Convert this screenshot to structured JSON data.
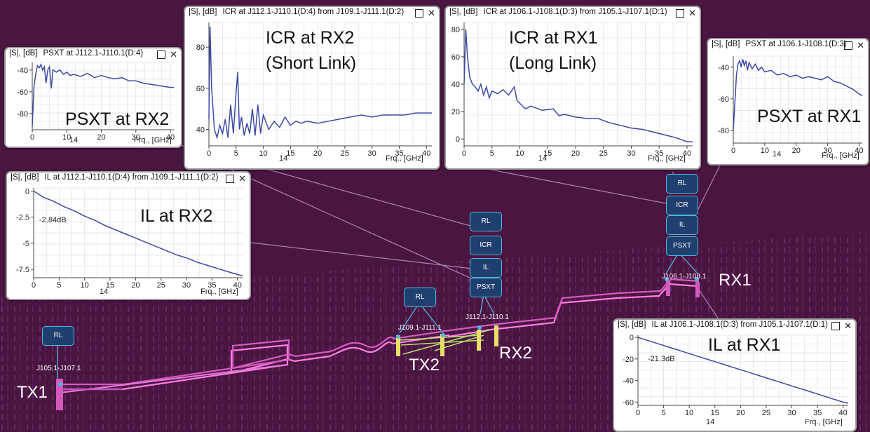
{
  "windows": {
    "psxt_rx2": {
      "ylabel": "|S|, [dB]",
      "title": "PSXT at J112.1-J110.1(D:4)",
      "annotation": "PSXT at RX2",
      "xlabel": "Frq., [GHz]",
      "xsub": "14"
    },
    "icr_rx2": {
      "ylabel": "|S|, [dB]",
      "title": "ICR at J112.1-J110.1(D:4) from J109.1-J111.1(D:2)",
      "annotation_line1": "ICR at RX2",
      "annotation_line2": "(Short Link)",
      "xlabel": "Frq., [GHz]",
      "xsub": "14"
    },
    "icr_rx1": {
      "ylabel": "|S|, [dB]",
      "title": "ICR at J106.1-J108.1(D:3) from J105.1-J107.1(D:1)",
      "annotation_line1": "ICR at RX1",
      "annotation_line2": "(Long Link)",
      "xlabel": "Frq., [GHz]",
      "xsub": "14"
    },
    "psxt_rx1": {
      "ylabel": "|S|, [dB]",
      "title": "PSXT at J106.1-J108.1(D:3)",
      "annotation": "PSXT at RX1",
      "xlabel": "Frq., [GHz]",
      "xsub": "14"
    },
    "il_rx2": {
      "ylabel": "|S|, [dB]",
      "title": "IL at J112.1-J110.1(D:4) from J109.1-J111.1(D:2)",
      "annotation": "IL at RX2",
      "marker": "-2.84dB",
      "xlabel": "Frq., [GHz]",
      "xsub": "14"
    },
    "il_rx1": {
      "ylabel": "|S|, [dB]",
      "title": "IL at J106.1-J108.1(D:3) from J105.1-J107.1(D:1)",
      "annotation": "IL at RX1",
      "marker": "-21.3dB",
      "xlabel": "Frq., [GHz]",
      "xsub": "14"
    }
  },
  "scene": {
    "labels": {
      "tx1": "TX1",
      "tx2": "TX2",
      "rx1": "RX1",
      "rx2": "RX2"
    },
    "ports": {
      "tx1": "J105.1-J107.1",
      "tx2": "J109.1-J111.1",
      "rx2": "J112.1-J110.1",
      "rx1": "J106.1-J108.1"
    },
    "nodes": {
      "rl": "RL",
      "icr": "ICR",
      "il": "IL",
      "psxt": "PSXT"
    }
  },
  "controls": {
    "maximize": "☐",
    "close": "✕"
  },
  "chart_data": [
    {
      "id": "psxt_rx2",
      "type": "line",
      "xlim": [
        0,
        41
      ],
      "ylim": [
        -95,
        -33
      ],
      "xticks": [
        0,
        10,
        20,
        30,
        40
      ],
      "yticks": [
        -40,
        -60,
        -80
      ],
      "grid": true,
      "series": [
        {
          "color": "#3b4aa8",
          "x": [
            0,
            0.5,
            1,
            1.5,
            2,
            2.5,
            3,
            3.5,
            4,
            4.5,
            5,
            5.5,
            6,
            7,
            8,
            9,
            10,
            11,
            12,
            14,
            16,
            18,
            20,
            22,
            24,
            26,
            28,
            30,
            32,
            34,
            36,
            38,
            40,
            41
          ],
          "y": [
            -92,
            -55,
            -44,
            -36,
            -38,
            -35,
            -40,
            -37,
            -52,
            -40,
            -37,
            -57,
            -40,
            -42,
            -40,
            -44,
            -42,
            -45,
            -44,
            -46,
            -43,
            -47,
            -45,
            -47,
            -48,
            -47,
            -50,
            -50,
            -52,
            -53,
            -54,
            -55,
            -56,
            -56
          ]
        }
      ]
    },
    {
      "id": "icr_rx2",
      "type": "line",
      "xlim": [
        0,
        41
      ],
      "ylim": [
        32,
        92
      ],
      "xticks": [
        0,
        5,
        10,
        15,
        20,
        25,
        30,
        35,
        40
      ],
      "yticks": [
        40,
        60,
        80
      ],
      "grid": true,
      "series": [
        {
          "color": "#3b4aa8",
          "x": [
            0,
            0.2,
            0.5,
            1,
            1.5,
            2,
            2.5,
            3,
            3.5,
            4,
            4.5,
            5,
            5.3,
            5.6,
            6,
            6.5,
            7,
            7.5,
            8,
            8.5,
            9,
            9.5,
            10,
            11,
            12,
            13,
            14,
            15,
            16,
            17,
            18,
            20,
            22,
            24,
            26,
            28,
            30,
            32,
            34,
            36,
            38,
            40,
            41
          ],
          "y": [
            45,
            90,
            60,
            40,
            36,
            42,
            38,
            45,
            36,
            52,
            38,
            58,
            68,
            40,
            46,
            37,
            43,
            38,
            50,
            37,
            52,
            38,
            47,
            40,
            44,
            41,
            46,
            42,
            44,
            43,
            44,
            43,
            44,
            45,
            46,
            47,
            46,
            47,
            47,
            47,
            48,
            48,
            48
          ]
        }
      ]
    },
    {
      "id": "icr_rx1",
      "type": "line",
      "xlim": [
        0,
        41
      ],
      "ylim": [
        -5,
        85
      ],
      "xticks": [
        0,
        5,
        10,
        15,
        20,
        25,
        30,
        35,
        40
      ],
      "yticks": [
        0,
        20,
        40,
        60,
        80
      ],
      "grid": true,
      "series": [
        {
          "color": "#3b4aa8",
          "x": [
            0,
            0.3,
            0.6,
            1,
            1.5,
            2,
            2.5,
            3,
            3.5,
            4,
            4.5,
            5,
            6,
            7,
            8,
            9,
            9.5,
            10,
            11,
            12,
            14,
            16,
            17,
            18,
            20,
            22,
            24,
            26,
            28,
            30,
            32,
            34,
            36,
            38,
            40,
            41
          ],
          "y": [
            40,
            80,
            60,
            45,
            40,
            38,
            35,
            40,
            32,
            38,
            30,
            35,
            33,
            36,
            32,
            38,
            28,
            26,
            22,
            24,
            21,
            22,
            17,
            18,
            16,
            15,
            15,
            12,
            10,
            8,
            7,
            5,
            3,
            1,
            -2,
            -2
          ]
        }
      ]
    },
    {
      "id": "psxt_rx1",
      "type": "line",
      "xlim": [
        0,
        41
      ],
      "ylim": [
        -88,
        -33
      ],
      "xticks": [
        0,
        10,
        20,
        30,
        40
      ],
      "yticks": [
        -40,
        -60,
        -80
      ],
      "grid": true,
      "series": [
        {
          "color": "#3b4aa8",
          "x": [
            0,
            1,
            1.5,
            2,
            2.5,
            3,
            3.5,
            4,
            4.5,
            5,
            6,
            7,
            8,
            9,
            10,
            12,
            14,
            16,
            18,
            20,
            22,
            24,
            26,
            28,
            30,
            32,
            34,
            36,
            38,
            40,
            41
          ],
          "y": [
            -80,
            -45,
            -38,
            -36,
            -40,
            -35,
            -39,
            -36,
            -42,
            -37,
            -41,
            -38,
            -42,
            -40,
            -43,
            -42,
            -45,
            -44,
            -46,
            -45,
            -47,
            -46,
            -47,
            -48,
            -46,
            -49,
            -50,
            -52,
            -54,
            -57,
            -58
          ]
        }
      ]
    },
    {
      "id": "il_rx2",
      "type": "line",
      "xlim": [
        0,
        41
      ],
      "ylim": [
        -8.3,
        0.3
      ],
      "xticks": [
        0,
        5,
        10,
        15,
        20,
        25,
        30,
        35,
        40
      ],
      "yticks": [
        0,
        -2.5,
        -5,
        -7.5
      ],
      "grid": true,
      "series": [
        {
          "color": "#3b4aa8",
          "x": [
            0,
            2,
            4,
            6,
            8,
            10,
            12,
            14,
            16,
            18,
            20,
            22,
            24,
            26,
            28,
            30,
            32,
            34,
            36,
            38,
            40,
            41
          ],
          "y": [
            0,
            -0.6,
            -1.0,
            -1.5,
            -1.9,
            -2.4,
            -2.8,
            -3.3,
            -3.7,
            -4.1,
            -4.5,
            -4.9,
            -5.3,
            -5.7,
            -6.1,
            -6.4,
            -6.8,
            -7.1,
            -7.4,
            -7.7,
            -8.0,
            -8.1
          ]
        }
      ]
    },
    {
      "id": "il_rx1",
      "type": "line",
      "xlim": [
        0,
        41
      ],
      "ylim": [
        -63,
        2
      ],
      "xticks": [
        0,
        5,
        10,
        15,
        20,
        25,
        30,
        35,
        40
      ],
      "yticks": [
        0,
        -20,
        -40,
        -60
      ],
      "grid": true,
      "series": [
        {
          "color": "#3b4aa8",
          "x": [
            0,
            2,
            4,
            6,
            8,
            10,
            12,
            14,
            16,
            18,
            20,
            22,
            24,
            26,
            28,
            30,
            32,
            34,
            36,
            38,
            40,
            41
          ],
          "y": [
            0,
            -3,
            -6,
            -9,
            -12,
            -15,
            -18,
            -21,
            -24,
            -27,
            -30,
            -33,
            -36,
            -39,
            -42,
            -45,
            -48,
            -51,
            -54,
            -57,
            -60,
            -61
          ]
        }
      ]
    }
  ]
}
